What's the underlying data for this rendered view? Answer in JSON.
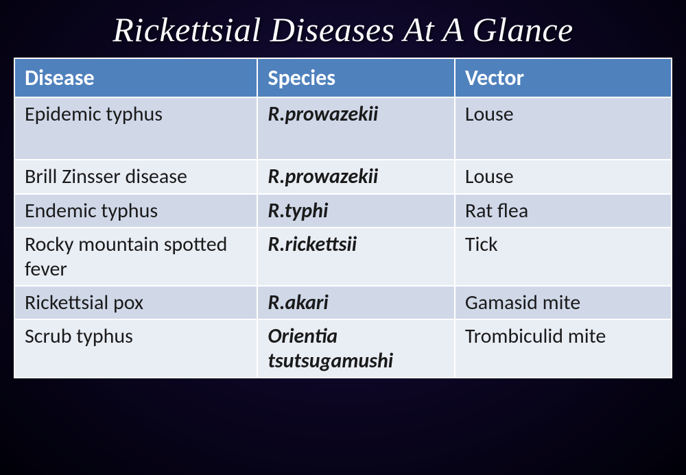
{
  "title": "Rickettsial Diseases At A Glance",
  "table": {
    "columns": [
      "Disease",
      "Species",
      "Vector"
    ],
    "column_widths_pct": [
      37,
      30,
      33
    ],
    "header_bg": "#4f81bd",
    "header_fg": "#ffffff",
    "row_colors": {
      "odd": "#d0d8e8",
      "even": "#e9edf4"
    },
    "border_color": "#ffffff",
    "body_font_size_pt": 22,
    "header_font_size_pt": 24,
    "rows": [
      {
        "disease": "Epidemic typhus",
        "species": "R.prowazekii",
        "vector": "Louse",
        "tall": true
      },
      {
        "disease": "Brill Zinsser disease",
        "species": "R.prowazekii",
        "vector": "Louse",
        "tall": false
      },
      {
        "disease": "Endemic typhus",
        "species": "R.typhi",
        "vector": "Rat flea",
        "tall": false
      },
      {
        "disease": "Rocky mountain spotted fever",
        "species": "R.rickettsii",
        "vector": "Tick",
        "tall": false
      },
      {
        "disease": "Rickettsial pox",
        "species": "R.akari",
        "vector": "Gamasid mite",
        "tall": false
      },
      {
        "disease": "Scrub typhus",
        "species": "Orientia tsutsugamushi",
        "vector": "Trombiculid mite",
        "tall": false
      }
    ]
  },
  "title_style": {
    "color": "#fdfdfd",
    "font_size_pt": 38,
    "font_family": "Monotype Corsiva / cursive italic"
  },
  "background": {
    "type": "radial-gradient",
    "center_color": "#1a1144",
    "mid_color": "#0b0520",
    "edge_color": "#000008"
  }
}
